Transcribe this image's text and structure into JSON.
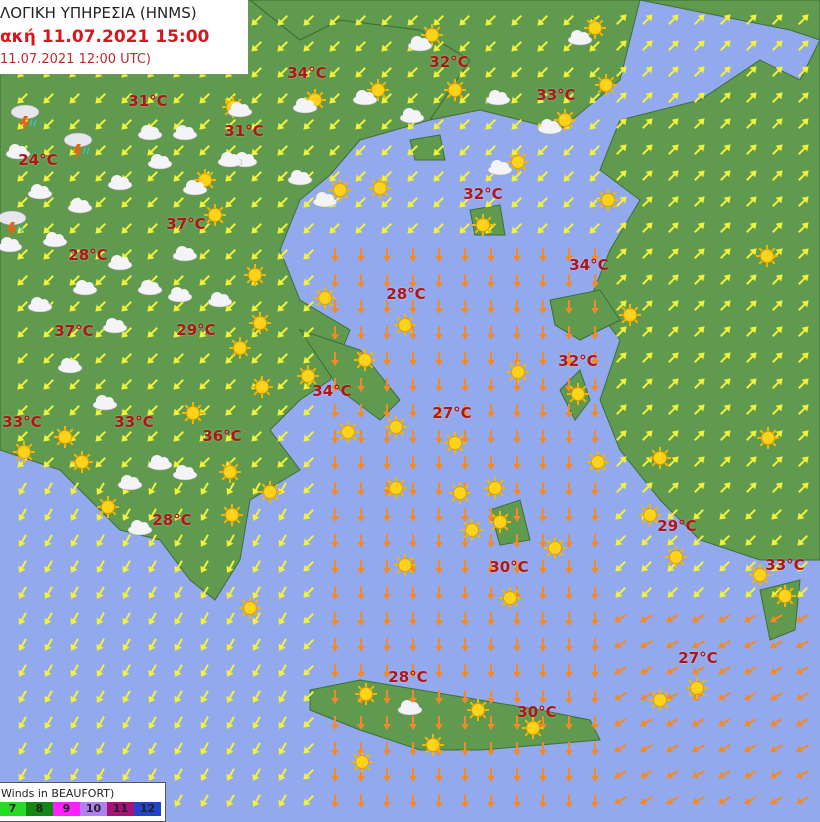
{
  "header": {
    "agency": "ΛΟΓΙΚΗ ΥΠΗΡΕΣΙΑ (HNMS)",
    "forecast_time": "ακή 11.07.2021 15:00",
    "run_time": "11.07.2021 12:00 UTC)"
  },
  "colors": {
    "sea": "#93a9ee",
    "land": "#5f9a4e",
    "temperature_text": "#b01616",
    "arrow_light": "#f2f23a",
    "arrow_strong": "#f28a2a",
    "arrow_max": "#e8382a"
  },
  "temperatures": [
    "34°C",
    "32°C",
    "31°C",
    "33°C",
    "31°C",
    "24°C",
    "32°C",
    "37°C",
    "28°C",
    "34°C",
    "28°C",
    "37°C",
    "29°C",
    "32°C",
    "34°C",
    "27°C",
    "33°C",
    "33°C",
    "36°C",
    "28°C",
    "29°C",
    "30°C",
    "33°C",
    "27°C",
    "28°C",
    "30°C"
  ],
  "legend": {
    "title": "Winds in BEAUFORT)",
    "scale": [
      {
        "label": "7",
        "color": "#22dd22"
      },
      {
        "label": "8",
        "color": "#118811"
      },
      {
        "label": "9",
        "color": "#ff22ff"
      },
      {
        "label": "10",
        "color": "#b080f0"
      },
      {
        "label": "11",
        "color": "#aa1177"
      },
      {
        "label": "12",
        "color": "#2244cc"
      }
    ]
  },
  "weather_icons": [
    "sun-icon",
    "sun-cloud-icon",
    "thunderstorm-icon"
  ]
}
